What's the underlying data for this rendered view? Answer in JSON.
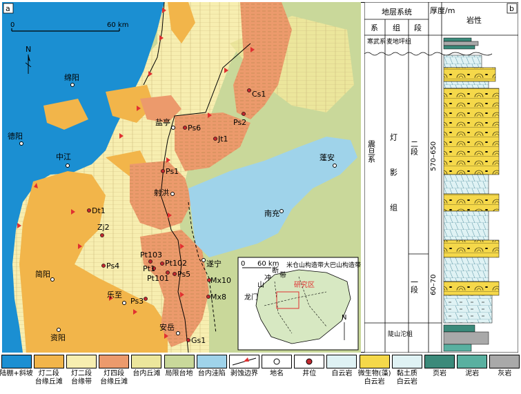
{
  "panel_labels": {
    "map": "a",
    "column": "b"
  },
  "scale_bar": {
    "start": "0",
    "end": "60 km"
  },
  "north": "N",
  "map_places": {
    "mianyang": "绵阳",
    "deyang": "德阳",
    "zhongjiang": "中江",
    "yanting": "盐亭",
    "shehong": "射洪",
    "pengan": "蓬安",
    "nanchong": "南充",
    "suining": "遂宁",
    "jianyang": "简阳",
    "lezhi": "乐至",
    "ziyang": "资阳",
    "anyue": "安岳"
  },
  "wells": {
    "cs1": "Cs1",
    "ps2": "Ps2",
    "ps6": "Ps6",
    "jt1": "Jt1",
    "ps1": "Ps1",
    "dt1": "Dt1",
    "zj2": "Zj2",
    "pt103": "Pt103",
    "pt1": "Pt1",
    "pt102": "Pt102",
    "pt101": "Pt101",
    "ps4": "Ps4",
    "ps5": "Ps5",
    "mx10": "Mx10",
    "mx8": "Mx8",
    "ps3": "Ps3",
    "gs1": "Gs1"
  },
  "inset": {
    "scale_start": "0",
    "scale_end": "60 km",
    "study_area": "研究区",
    "longmen": "龙门",
    "shan": "山",
    "chong": "冲",
    "duan": "断",
    "dai": "带",
    "micang_dabashan": "米仓山构造带大巴山构造带",
    "north": "N"
  },
  "column": {
    "header_system": "地层系统",
    "header_thickness": "厚度/m",
    "header_lithology": "岩性",
    "col_xi": "系",
    "col_zu": "组",
    "col_duan": "段",
    "cambrian": "寒武系",
    "maidiping": "麦地坪组",
    "sinian": "震旦系",
    "dengying": "灯影组",
    "member2": "二段",
    "member1": "一段",
    "thickness2": "570–650",
    "thickness1": "60–70",
    "doushantuo": "陡山沱组"
  },
  "legend": [
    {
      "label": "陆棚+斜坡",
      "color": "#1b8fd2"
    },
    {
      "label": "灯二段\n台缘丘滩",
      "color": "#f2b54a"
    },
    {
      "label": "灯二段\n台缘带",
      "color": "#f7eeb0"
    },
    {
      "label": "灯四段\n台缘丘滩",
      "color": "#ec9a6c"
    },
    {
      "label": "台内丘滩",
      "color": "#ece69c"
    },
    {
      "label": "局限台地",
      "color": "#c9d89a"
    },
    {
      "label": "台内洼陷",
      "color": "#9fd3ea"
    },
    {
      "label": "剥蚀边界",
      "color": "#ffffff"
    },
    {
      "label": "地名",
      "color": "#ffffff"
    },
    {
      "label": "井位",
      "color": "#ffffff"
    },
    {
      "label": "白云岩",
      "color": "#dff2f4"
    },
    {
      "label": "微生物(藻)\n白云岩",
      "color": "#f5d84a"
    },
    {
      "label": "黏土质\n白云岩",
      "color": "#dff2f4"
    },
    {
      "label": "页岩",
      "color": "#3b8a7a"
    },
    {
      "label": "泥岩",
      "color": "#59b0a0"
    },
    {
      "label": "灰岩",
      "color": "#a9a9a9"
    }
  ]
}
